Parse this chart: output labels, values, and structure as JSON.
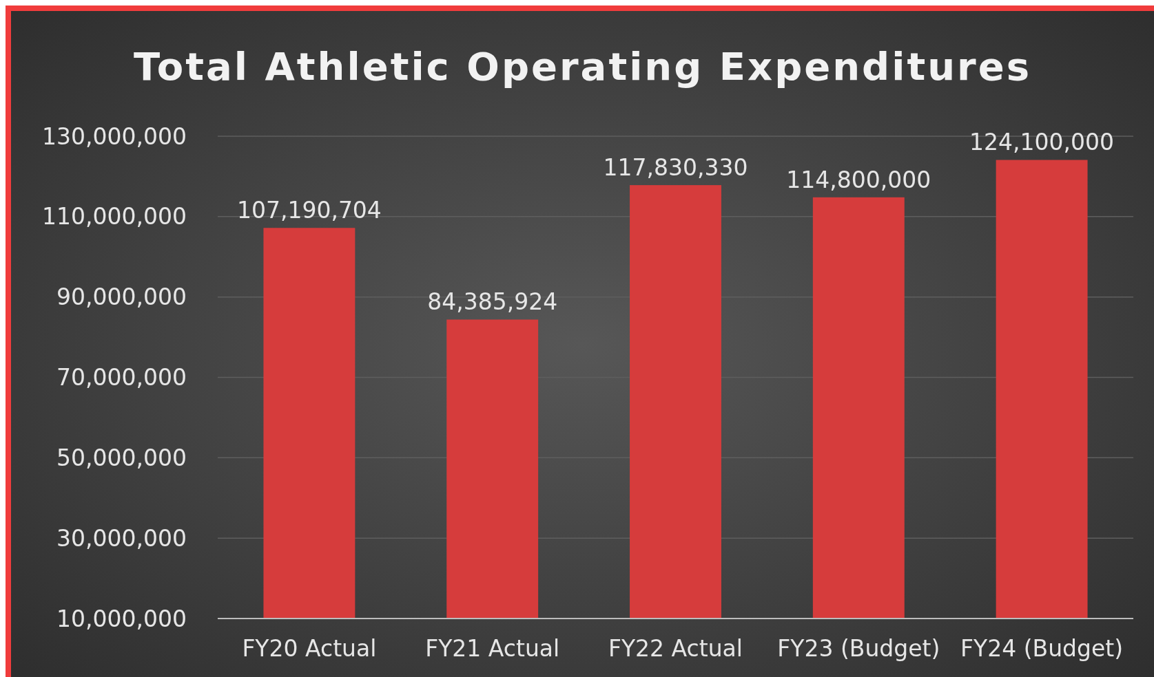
{
  "chart_data": {
    "type": "bar",
    "title": "Total Athletic Operating Expenditures",
    "categories": [
      "FY20 Actual",
      "FY21 Actual",
      "FY22 Actual",
      "FY23 (Budget)",
      "FY24 (Budget)"
    ],
    "values": [
      107190704,
      84385924,
      117830330,
      114800000,
      124100000
    ],
    "color": "#d63c3c",
    "ylim": [
      10000000,
      130000000
    ],
    "yticks": [
      {
        "value": 10000000,
        "label": "10,000,000"
      },
      {
        "value": 30000000,
        "label": "30,000,000"
      },
      {
        "value": 50000000,
        "label": "50,000,000"
      },
      {
        "value": 70000000,
        "label": "70,000,000"
      },
      {
        "value": 90000000,
        "label": "90,000,000"
      },
      {
        "value": 110000000,
        "label": "110,000,000"
      },
      {
        "value": 130000000,
        "label": "130,000,000"
      }
    ],
    "value_labels": [
      "107,190,704",
      "84,385,924",
      "117,830,330",
      "114,800,000",
      "124,100,000"
    ],
    "grid": "y"
  }
}
